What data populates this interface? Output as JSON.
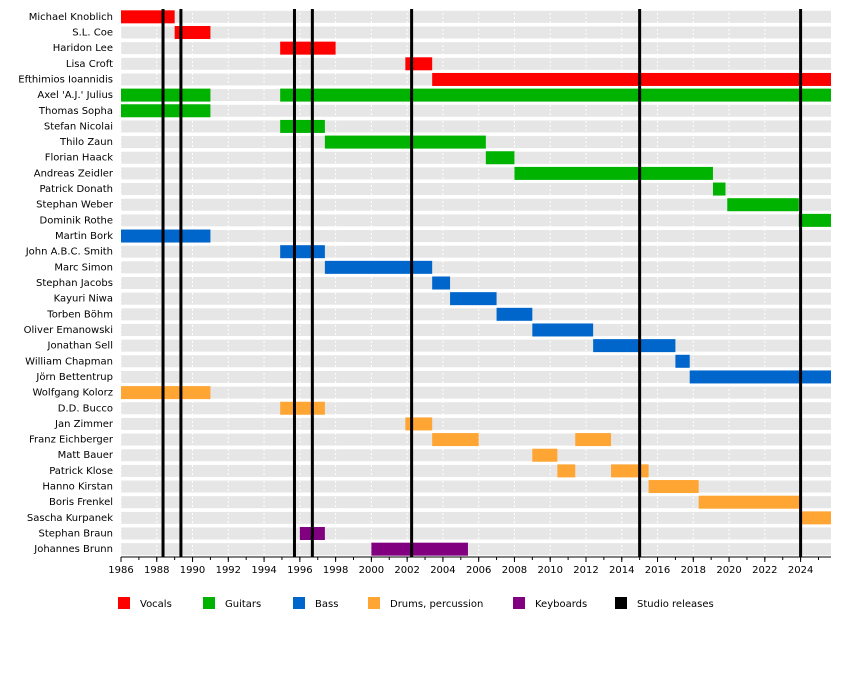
{
  "chart_data": {
    "type": "timeline",
    "xlim": [
      1986,
      2025.7
    ],
    "xticks": [
      1986,
      1988,
      1990,
      1992,
      1994,
      1996,
      1998,
      2000,
      2002,
      2004,
      2006,
      2008,
      2010,
      2012,
      2014,
      2016,
      2018,
      2020,
      2022,
      2024
    ],
    "series": [
      {
        "name": "Vocals",
        "color": "#ff0000",
        "members": [
          {
            "name": "Michael Knoblich",
            "periods": [
              [
                1986,
                1989.0
              ]
            ]
          },
          {
            "name": "S.L. Coe",
            "periods": [
              [
                1989.0,
                1991.0
              ]
            ]
          },
          {
            "name": "Haridon Lee",
            "periods": [
              [
                1994.9,
                1998.0
              ]
            ]
          },
          {
            "name": "Lisa Croft",
            "periods": [
              [
                2001.9,
                2003.4
              ]
            ]
          },
          {
            "name": "Efthimios Ioannidis",
            "periods": [
              [
                2003.4,
                2025.7
              ]
            ]
          }
        ]
      },
      {
        "name": "Guitars",
        "color": "#00b300",
        "members": [
          {
            "name": "Axel 'A.J.' Julius",
            "periods": [
              [
                1986,
                1991.0
              ],
              [
                1994.9,
                2025.7
              ]
            ]
          },
          {
            "name": "Thomas Sopha",
            "periods": [
              [
                1986,
                1991.0
              ]
            ]
          },
          {
            "name": "Stefan Nicolai",
            "periods": [
              [
                1994.9,
                1997.4
              ]
            ]
          },
          {
            "name": "Thilo Zaun",
            "periods": [
              [
                1997.4,
                2006.4
              ]
            ]
          },
          {
            "name": "Florian Haack",
            "periods": [
              [
                2006.4,
                2008.0
              ]
            ]
          },
          {
            "name": "Andreas Zeidler",
            "periods": [
              [
                2008.0,
                2019.1
              ]
            ]
          },
          {
            "name": "Patrick Donath",
            "periods": [
              [
                2019.1,
                2019.8
              ]
            ]
          },
          {
            "name": "Stephan Weber",
            "periods": [
              [
                2019.9,
                2023.9
              ]
            ]
          },
          {
            "name": "Dominik Rothe",
            "periods": [
              [
                2023.9,
                2025.7
              ]
            ]
          }
        ]
      },
      {
        "name": "Bass",
        "color": "#0066cc",
        "members": [
          {
            "name": "Martin Bork",
            "periods": [
              [
                1986,
                1991.0
              ]
            ]
          },
          {
            "name": "John A.B.C. Smith",
            "periods": [
              [
                1994.9,
                1997.4
              ]
            ]
          },
          {
            "name": "Marc Simon",
            "periods": [
              [
                1997.4,
                2003.4
              ]
            ]
          },
          {
            "name": "Stephan Jacobs",
            "periods": [
              [
                2003.4,
                2004.4
              ]
            ]
          },
          {
            "name": "Kayuri Niwa",
            "periods": [
              [
                2004.4,
                2007.0
              ]
            ]
          },
          {
            "name": "Torben Böhm",
            "periods": [
              [
                2007.0,
                2009.0
              ]
            ]
          },
          {
            "name": "Oliver Emanowski",
            "periods": [
              [
                2009.0,
                2012.4
              ]
            ]
          },
          {
            "name": "Jonathan Sell",
            "periods": [
              [
                2012.4,
                2017.0
              ]
            ]
          },
          {
            "name": "William Chapman",
            "periods": [
              [
                2017.0,
                2017.8
              ]
            ]
          },
          {
            "name": "Jörn Bettentrup",
            "periods": [
              [
                2017.8,
                2025.7
              ]
            ]
          }
        ]
      },
      {
        "name": "Drums, percussion",
        "color": "#ffa533",
        "members": [
          {
            "name": "Wolfgang Kolorz",
            "periods": [
              [
                1986,
                1991.0
              ]
            ]
          },
          {
            "name": "D.D. Bucco",
            "periods": [
              [
                1994.9,
                1997.4
              ]
            ]
          },
          {
            "name": "Jan Zimmer",
            "periods": [
              [
                2001.9,
                2003.4
              ]
            ]
          },
          {
            "name": "Franz Eichberger",
            "periods": [
              [
                2003.4,
                2006.0
              ],
              [
                2011.4,
                2013.4
              ]
            ]
          },
          {
            "name": "Matt Bauer",
            "periods": [
              [
                2009.0,
                2010.4
              ]
            ]
          },
          {
            "name": "Patrick Klose",
            "periods": [
              [
                2010.4,
                2011.4
              ],
              [
                2013.4,
                2015.5
              ]
            ]
          },
          {
            "name": "Hanno Kirstan",
            "periods": [
              [
                2015.5,
                2018.3
              ]
            ]
          },
          {
            "name": "Boris Frenkel",
            "periods": [
              [
                2018.3,
                2024.0
              ]
            ]
          },
          {
            "name": "Sascha Kurpanek",
            "periods": [
              [
                2024.0,
                2025.7
              ]
            ]
          }
        ]
      },
      {
        "name": "Keyboards",
        "color": "#800080",
        "members": [
          {
            "name": "Stephan Braun",
            "periods": [
              [
                1996.0,
                1997.4
              ]
            ]
          },
          {
            "name": "Johannes Brunn",
            "periods": [
              [
                2000.0,
                2005.4
              ]
            ]
          }
        ]
      },
      {
        "name": "Studio releases",
        "color": "#000000",
        "values": [
          1988.35,
          1989.35,
          1995.7,
          1996.7,
          2002.25,
          2015.0,
          2024.0
        ]
      }
    ]
  }
}
